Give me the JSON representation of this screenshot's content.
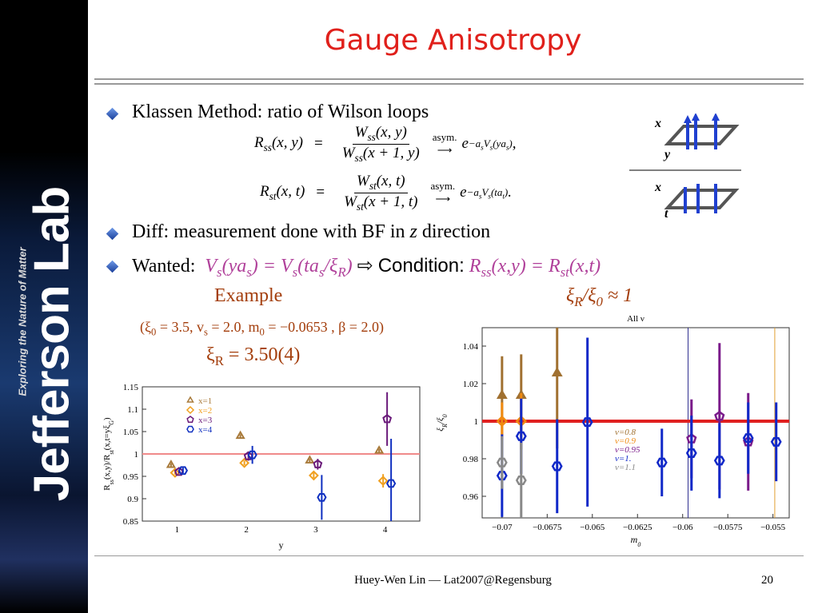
{
  "title": "Gauge Anisotropy",
  "sidebar": {
    "logo": "Jefferson Lab",
    "tagline": "Exploring the Nature of Matter"
  },
  "bullet1": "Klassen Method: ratio of Wilson loops",
  "formulas": [
    {
      "lhs": [
        "R",
        "ss",
        "(x, y)"
      ],
      "eq": "=",
      "num": [
        "W",
        "ss",
        "(x, y)"
      ],
      "den": [
        "W",
        "ss",
        "(x + 1, y)"
      ],
      "arrow": "asym.",
      "rhs": "e",
      "exp": [
        "−a",
        "s",
        "V",
        "s",
        "(ya",
        "s",
        ")"
      ],
      "end": ","
    },
    {
      "lhs": [
        "R",
        "st",
        "(x, t)"
      ],
      "eq": "=",
      "num": [
        "W",
        "st",
        "(x, t)"
      ],
      "den": [
        "W",
        "st",
        "(x + 1, t)"
      ],
      "arrow": "asym.",
      "rhs": "e",
      "exp": [
        "−a",
        "s",
        "V",
        "s",
        "(ta",
        "t",
        ")"
      ],
      "end": "."
    }
  ],
  "loops": [
    {
      "top": "x",
      "side": "y"
    },
    {
      "top": "x",
      "side": "t"
    }
  ],
  "bullet2": {
    "before": "Diff: measurement done with BF in ",
    "var": "z",
    "after": " direction"
  },
  "bullet3": {
    "label": "Wanted:",
    "lhs": [
      "V",
      "s",
      "(ya",
      "s",
      ") = V",
      "s",
      "(ta",
      "s",
      "/ξ",
      "R",
      ")"
    ],
    "arrow": "⇨",
    "condition": "Condition:",
    "rhs": [
      "R",
      "ss",
      "(x,y) = R",
      "st",
      "(x,t)"
    ]
  },
  "example": {
    "label": "Example",
    "ratio": [
      "ξ",
      "R",
      "/ξ",
      "0",
      " ≈ 1"
    ],
    "params": [
      "(ξ",
      "0",
      " = 3.5, v",
      "s",
      " = 2.0, m",
      "0",
      " = −0.0653 , β = 2.0)"
    ],
    "xi_r": [
      "ξ",
      "R",
      " = 3.50(4)"
    ]
  },
  "footer": {
    "text": "Huey-Wen Lin — Lat2007@Regensburg",
    "page": "20"
  },
  "chart_data": [
    {
      "type": "scatter",
      "categories": [
        "1",
        "2",
        "3",
        "4"
      ],
      "xlabel": "y",
      "ylabel": [
        "R",
        "ss",
        "(x,y)/R",
        "st",
        "(x,t=yξ",
        "G",
        ")"
      ],
      "ylim": [
        0.85,
        1.15
      ],
      "yticks": [
        0.85,
        0.9,
        0.95,
        1,
        1.05,
        1.1,
        1.15
      ],
      "hline": 1,
      "hline_color": "#f08a8a",
      "legend": "upper left",
      "series": [
        {
          "name": "x=1",
          "color": "#a87a3a",
          "marker": "triangle",
          "filled": false,
          "values": [
            0.975,
            1.04,
            0.985,
            1.007
          ],
          "errors": [
            0.004,
            0.004,
            0.004,
            0.004
          ]
        },
        {
          "name": "x=2",
          "color": "#f0a020",
          "marker": "diamond",
          "filled": false,
          "values": [
            0.958,
            0.98,
            0.952,
            0.94
          ],
          "errors": [
            0.004,
            0.005,
            0.006,
            0.015
          ]
        },
        {
          "name": "x=3",
          "color": "#6a1a7a",
          "marker": "pentagon",
          "filled": false,
          "values": [
            0.96,
            0.995,
            0.977,
            1.078
          ],
          "errors": [
            0.004,
            0.01,
            0.012,
            0.06
          ]
        },
        {
          "name": "x=4",
          "color": "#1030c0",
          "marker": "hexagon",
          "filled": false,
          "values": [
            0.963,
            0.998,
            0.903,
            0.934
          ],
          "errors": [
            0.006,
            0.02,
            0.05,
            0.1
          ]
        }
      ]
    },
    {
      "type": "scatter",
      "title": "All ν",
      "xlabel": [
        "m",
        "0"
      ],
      "ylabel": [
        "ξ",
        "R",
        "/ξ",
        "0"
      ],
      "xlim": [
        -0.0711,
        -0.0541
      ],
      "xticks": [
        {
          "value": -0.07,
          "label": "−0.07"
        },
        {
          "value": -0.0675,
          "label": "−0.0675"
        },
        {
          "value": -0.065,
          "label": "−0.065"
        },
        {
          "value": -0.0625,
          "label": "−0.0625"
        },
        {
          "value": -0.06,
          "label": "−0.06"
        },
        {
          "value": -0.0575,
          "label": "−0.0575"
        },
        {
          "value": -0.055,
          "label": "−0.055"
        }
      ],
      "ylim": [
        0.9485,
        1.0498
      ],
      "yticks": [
        0.96,
        0.98,
        1,
        1.02,
        1.04
      ],
      "hline": 1,
      "hline_color": "#e02020",
      "legend": "center",
      "vlines": [
        {
          "x": -0.0597,
          "color": "#303090"
        },
        {
          "x": -0.0549,
          "color": "#e0a030"
        }
      ],
      "series": [
        {
          "name": "ν=0.8",
          "color": "#a07030",
          "marker": "triangle",
          "filled": true,
          "x": [
            -0.07,
            -0.06894,
            -0.06695
          ],
          "values": [
            1.0136,
            1.0136,
            1.0255
          ],
          "errors": [
            0.021,
            0.022,
            0.04
          ]
        },
        {
          "name": "ν=0.9",
          "color": "#f08a10",
          "marker": "diamond",
          "filled": false,
          "x": [
            -0.07,
            -0.06894
          ],
          "values": [
            1.0,
            1.0
          ],
          "errors": [
            0.01,
            0.015
          ]
        },
        {
          "name": "ν=0.95",
          "color": "#7a1a8a",
          "marker": "pentagon",
          "filled": false,
          "x": [
            -0.05951,
            -0.05796,
            -0.05637
          ],
          "values": [
            0.9906,
            1.0026,
            0.989
          ],
          "errors": [
            0.021,
            0.039,
            0.026
          ]
        },
        {
          "name": "ν=1.",
          "color": "#1028c8",
          "marker": "hexagon",
          "filled": false,
          "x": [
            -0.07,
            -0.06894,
            -0.06695,
            -0.06527,
            -0.06115,
            -0.05951,
            -0.05796,
            -0.05637,
            -0.05482
          ],
          "values": [
            0.971,
            0.992,
            0.976,
            0.9995,
            0.978,
            0.983,
            0.979,
            0.991,
            0.989
          ],
          "errors": [
            0.022,
            0.02,
            0.025,
            0.045,
            0.018,
            0.02,
            0.02,
            0.019,
            0.021
          ]
        },
        {
          "name": "ν=1.1",
          "color": "#888888",
          "marker": "hexagon",
          "filled": false,
          "x": [
            -0.07,
            -0.06894
          ],
          "values": [
            0.978,
            0.9685
          ],
          "errors": [
            0.014,
            0.02
          ]
        }
      ]
    }
  ]
}
